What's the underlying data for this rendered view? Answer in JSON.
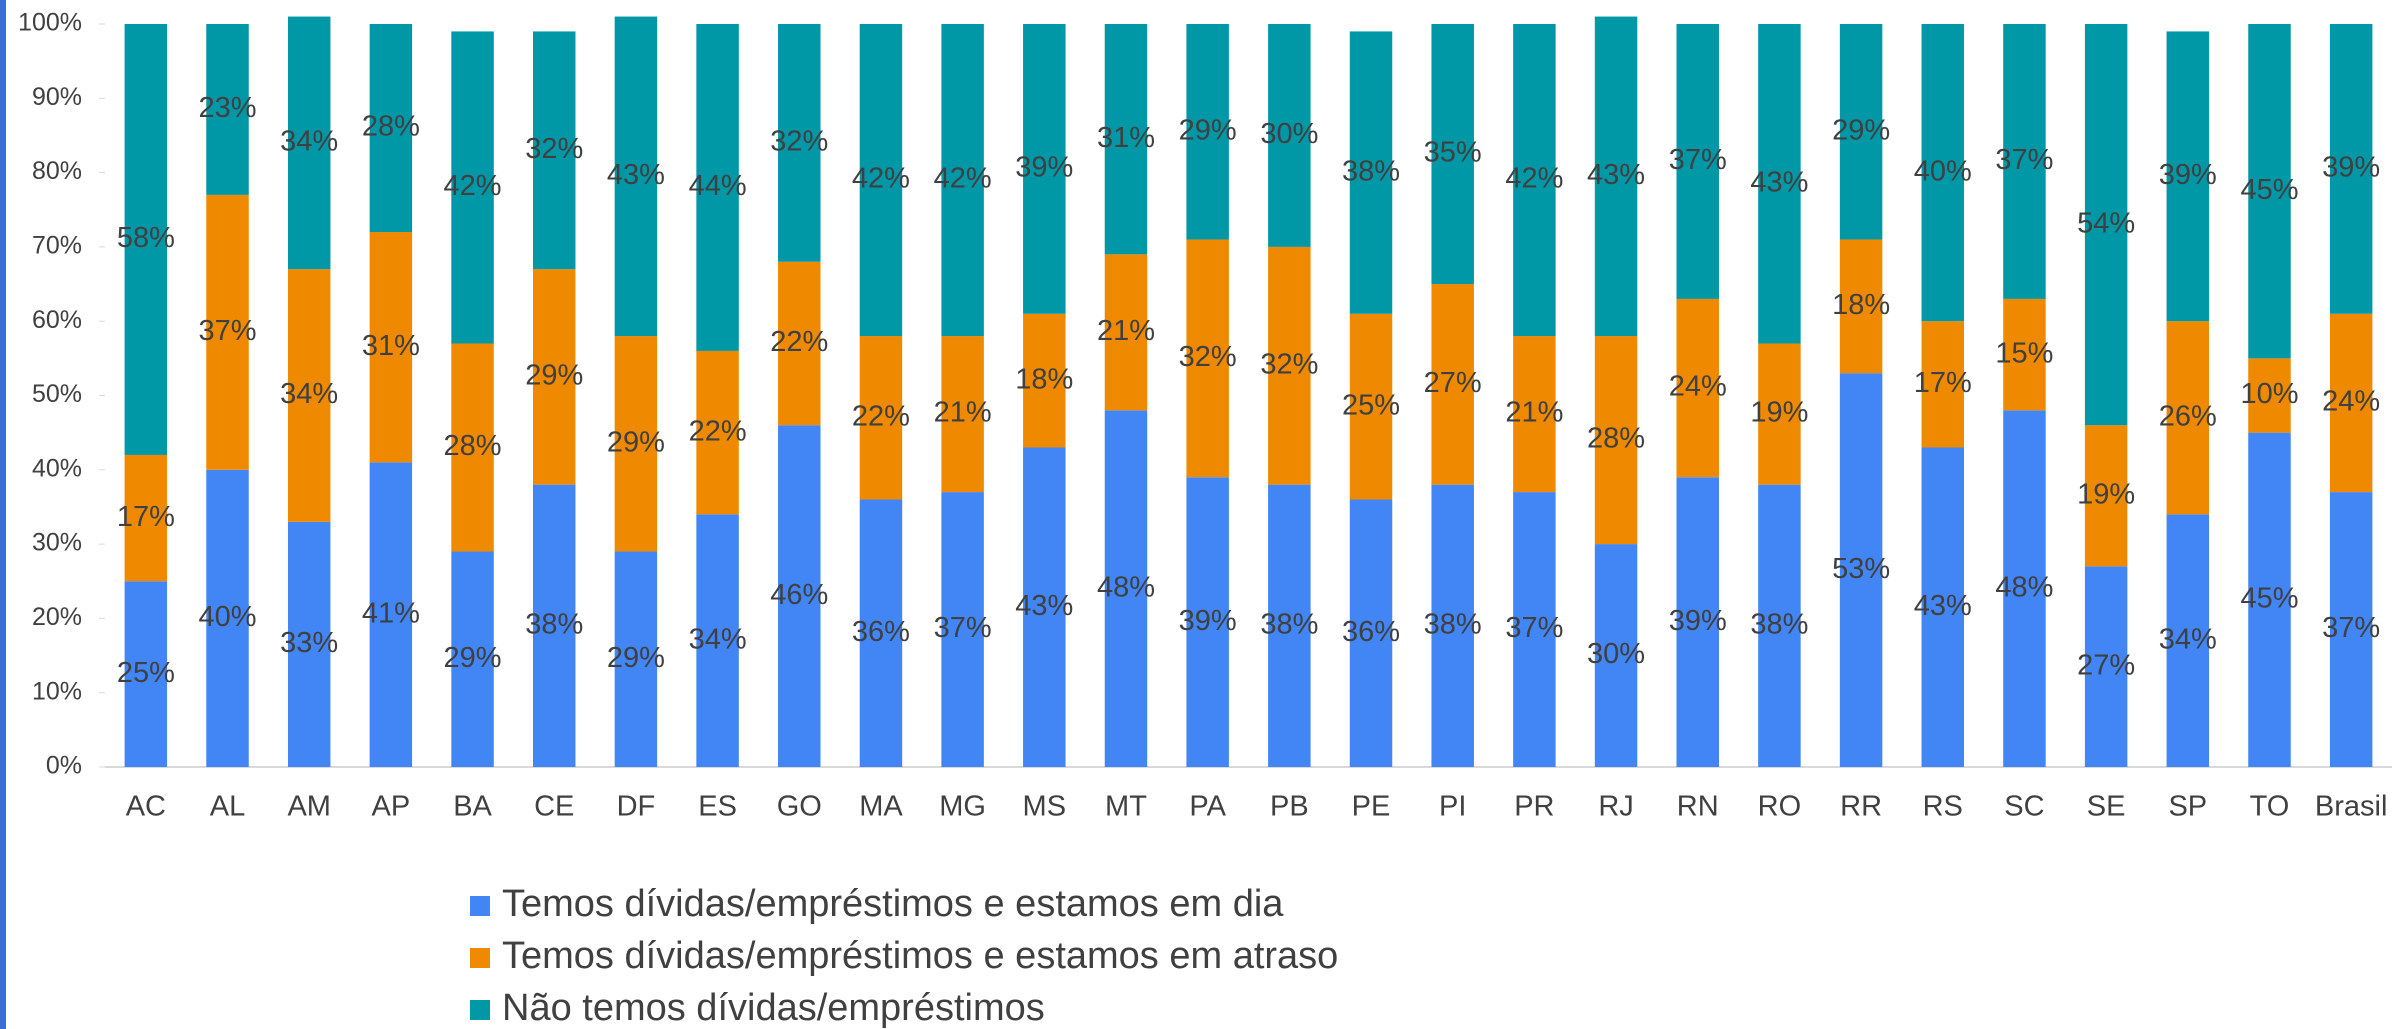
{
  "chart_data": {
    "type": "stacked_bar",
    "categories": [
      "AC",
      "AL",
      "AM",
      "AP",
      "BA",
      "CE",
      "DF",
      "ES",
      "GO",
      "MA",
      "MG",
      "MS",
      "MT",
      "PA",
      "PB",
      "PE",
      "PI",
      "PR",
      "RJ",
      "RN",
      "RO",
      "RR",
      "RS",
      "SC",
      "SE",
      "SP",
      "TO",
      "Brasil"
    ],
    "series": [
      {
        "name": "Temos dívidas/empréstimos e estamos em dia",
        "color": "#4285f4",
        "values": [
          25,
          40,
          33,
          41,
          29,
          38,
          29,
          34,
          46,
          36,
          37,
          43,
          48,
          39,
          38,
          36,
          38,
          37,
          30,
          39,
          38,
          53,
          43,
          48,
          27,
          34,
          45,
          37
        ],
        "value_labels": [
          "25%",
          "40%",
          "33%",
          "41%",
          "29%",
          "38%",
          "29%",
          "34%",
          "46%",
          "36%",
          "37%",
          "43%",
          "48%",
          "39%",
          "38%",
          "36%",
          "38%",
          "37%",
          "30%",
          "39%",
          "38%",
          "53%",
          "43%",
          "48%",
          "27%",
          "34%",
          "45%",
          "37%"
        ]
      },
      {
        "name": "Temos dívidas/empréstimos e estamos em atraso",
        "color": "#ef8a00",
        "values": [
          17,
          37,
          34,
          31,
          28,
          29,
          29,
          22,
          22,
          22,
          21,
          18,
          21,
          32,
          32,
          25,
          27,
          21,
          28,
          24,
          19,
          18,
          17,
          15,
          19,
          26,
          10,
          24
        ],
        "value_labels": [
          "17%",
          "37%",
          "34%",
          "31%",
          "28%",
          "29%",
          "29%",
          "22%",
          "22%",
          "22%",
          "21%",
          "18%",
          "21%",
          "32%",
          "32%",
          "25%",
          "27%",
          "21%",
          "28%",
          "24%",
          "19%",
          "18%",
          "17%",
          "15%",
          "19%",
          "26%",
          "10%",
          "24%"
        ]
      },
      {
        "name": "Não temos dívidas/empréstimos",
        "color": "#0097a7",
        "values": [
          58,
          23,
          34,
          28,
          42,
          32,
          43,
          44,
          32,
          42,
          42,
          39,
          31,
          29,
          30,
          38,
          35,
          42,
          43,
          37,
          43,
          29,
          40,
          37,
          54,
          39,
          45,
          39
        ],
        "value_labels": [
          "58%",
          "23%",
          "34%",
          "28%",
          "42%",
          "32%",
          "43%",
          "44%",
          "32%",
          "42%",
          "42%",
          "39%",
          "31%",
          "29%",
          "30%",
          "38%",
          "35%",
          "42%",
          "43%",
          "37%",
          "43%",
          "29%",
          "40%",
          "37%",
          "54%",
          "39%",
          "45%",
          "39%"
        ]
      }
    ],
    "ylim": [
      0,
      100
    ],
    "yticks": [
      {
        "value": 0,
        "label": "0%"
      },
      {
        "value": 10,
        "label": "10%"
      },
      {
        "value": 20,
        "label": "20%"
      },
      {
        "value": 30,
        "label": "30%"
      },
      {
        "value": 40,
        "label": "40%"
      },
      {
        "value": 50,
        "label": "50%"
      },
      {
        "value": 60,
        "label": "60%"
      },
      {
        "value": 70,
        "label": "70%"
      },
      {
        "value": 80,
        "label": "80%"
      },
      {
        "value": 90,
        "label": "90%"
      },
      {
        "value": 100,
        "label": "100%"
      }
    ],
    "legend": "bottom"
  }
}
